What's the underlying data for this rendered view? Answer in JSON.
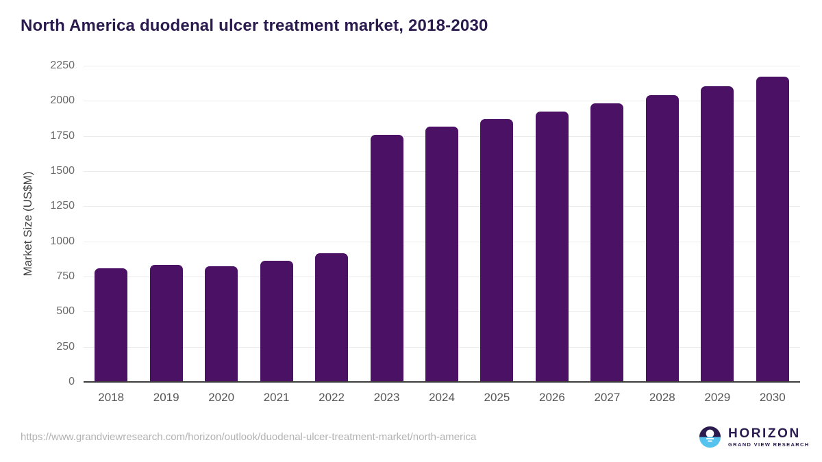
{
  "chart_data": {
    "type": "bar",
    "title": "North America duodenal ulcer treatment market, 2018-2030",
    "xlabel": "",
    "ylabel": "Market Size (US$M)",
    "categories": [
      "2018",
      "2019",
      "2020",
      "2021",
      "2022",
      "2023",
      "2024",
      "2025",
      "2026",
      "2027",
      "2028",
      "2029",
      "2030"
    ],
    "values": [
      810,
      835,
      825,
      860,
      915,
      1760,
      1815,
      1870,
      1925,
      1980,
      2040,
      2105,
      2170
    ],
    "ylim": [
      0,
      2250
    ],
    "yticks": [
      0,
      250,
      500,
      750,
      1000,
      1250,
      1500,
      1750,
      2000,
      2250
    ],
    "grid": "horizontal",
    "legend_position": "none",
    "bar_color": "#4a1164"
  },
  "footer": {
    "source_url": "https://www.grandviewresearch.com/horizon/outlook/duodenal-ulcer-treatment-market/north-america",
    "logo": {
      "name": "HORIZON",
      "subtitle": "GRAND VIEW RESEARCH"
    }
  },
  "colors": {
    "title_text": "#2a1a4d",
    "bar": "#4a1164",
    "axis_line": "#3c3c3c",
    "gridline": "#ebebeb",
    "y_tick_label": "#6b6b6b",
    "x_tick_label": "#565656",
    "source_url_text": "#b2b2b2",
    "logo_purple": "#2a1a4d",
    "logo_blue": "#56c2ee"
  }
}
